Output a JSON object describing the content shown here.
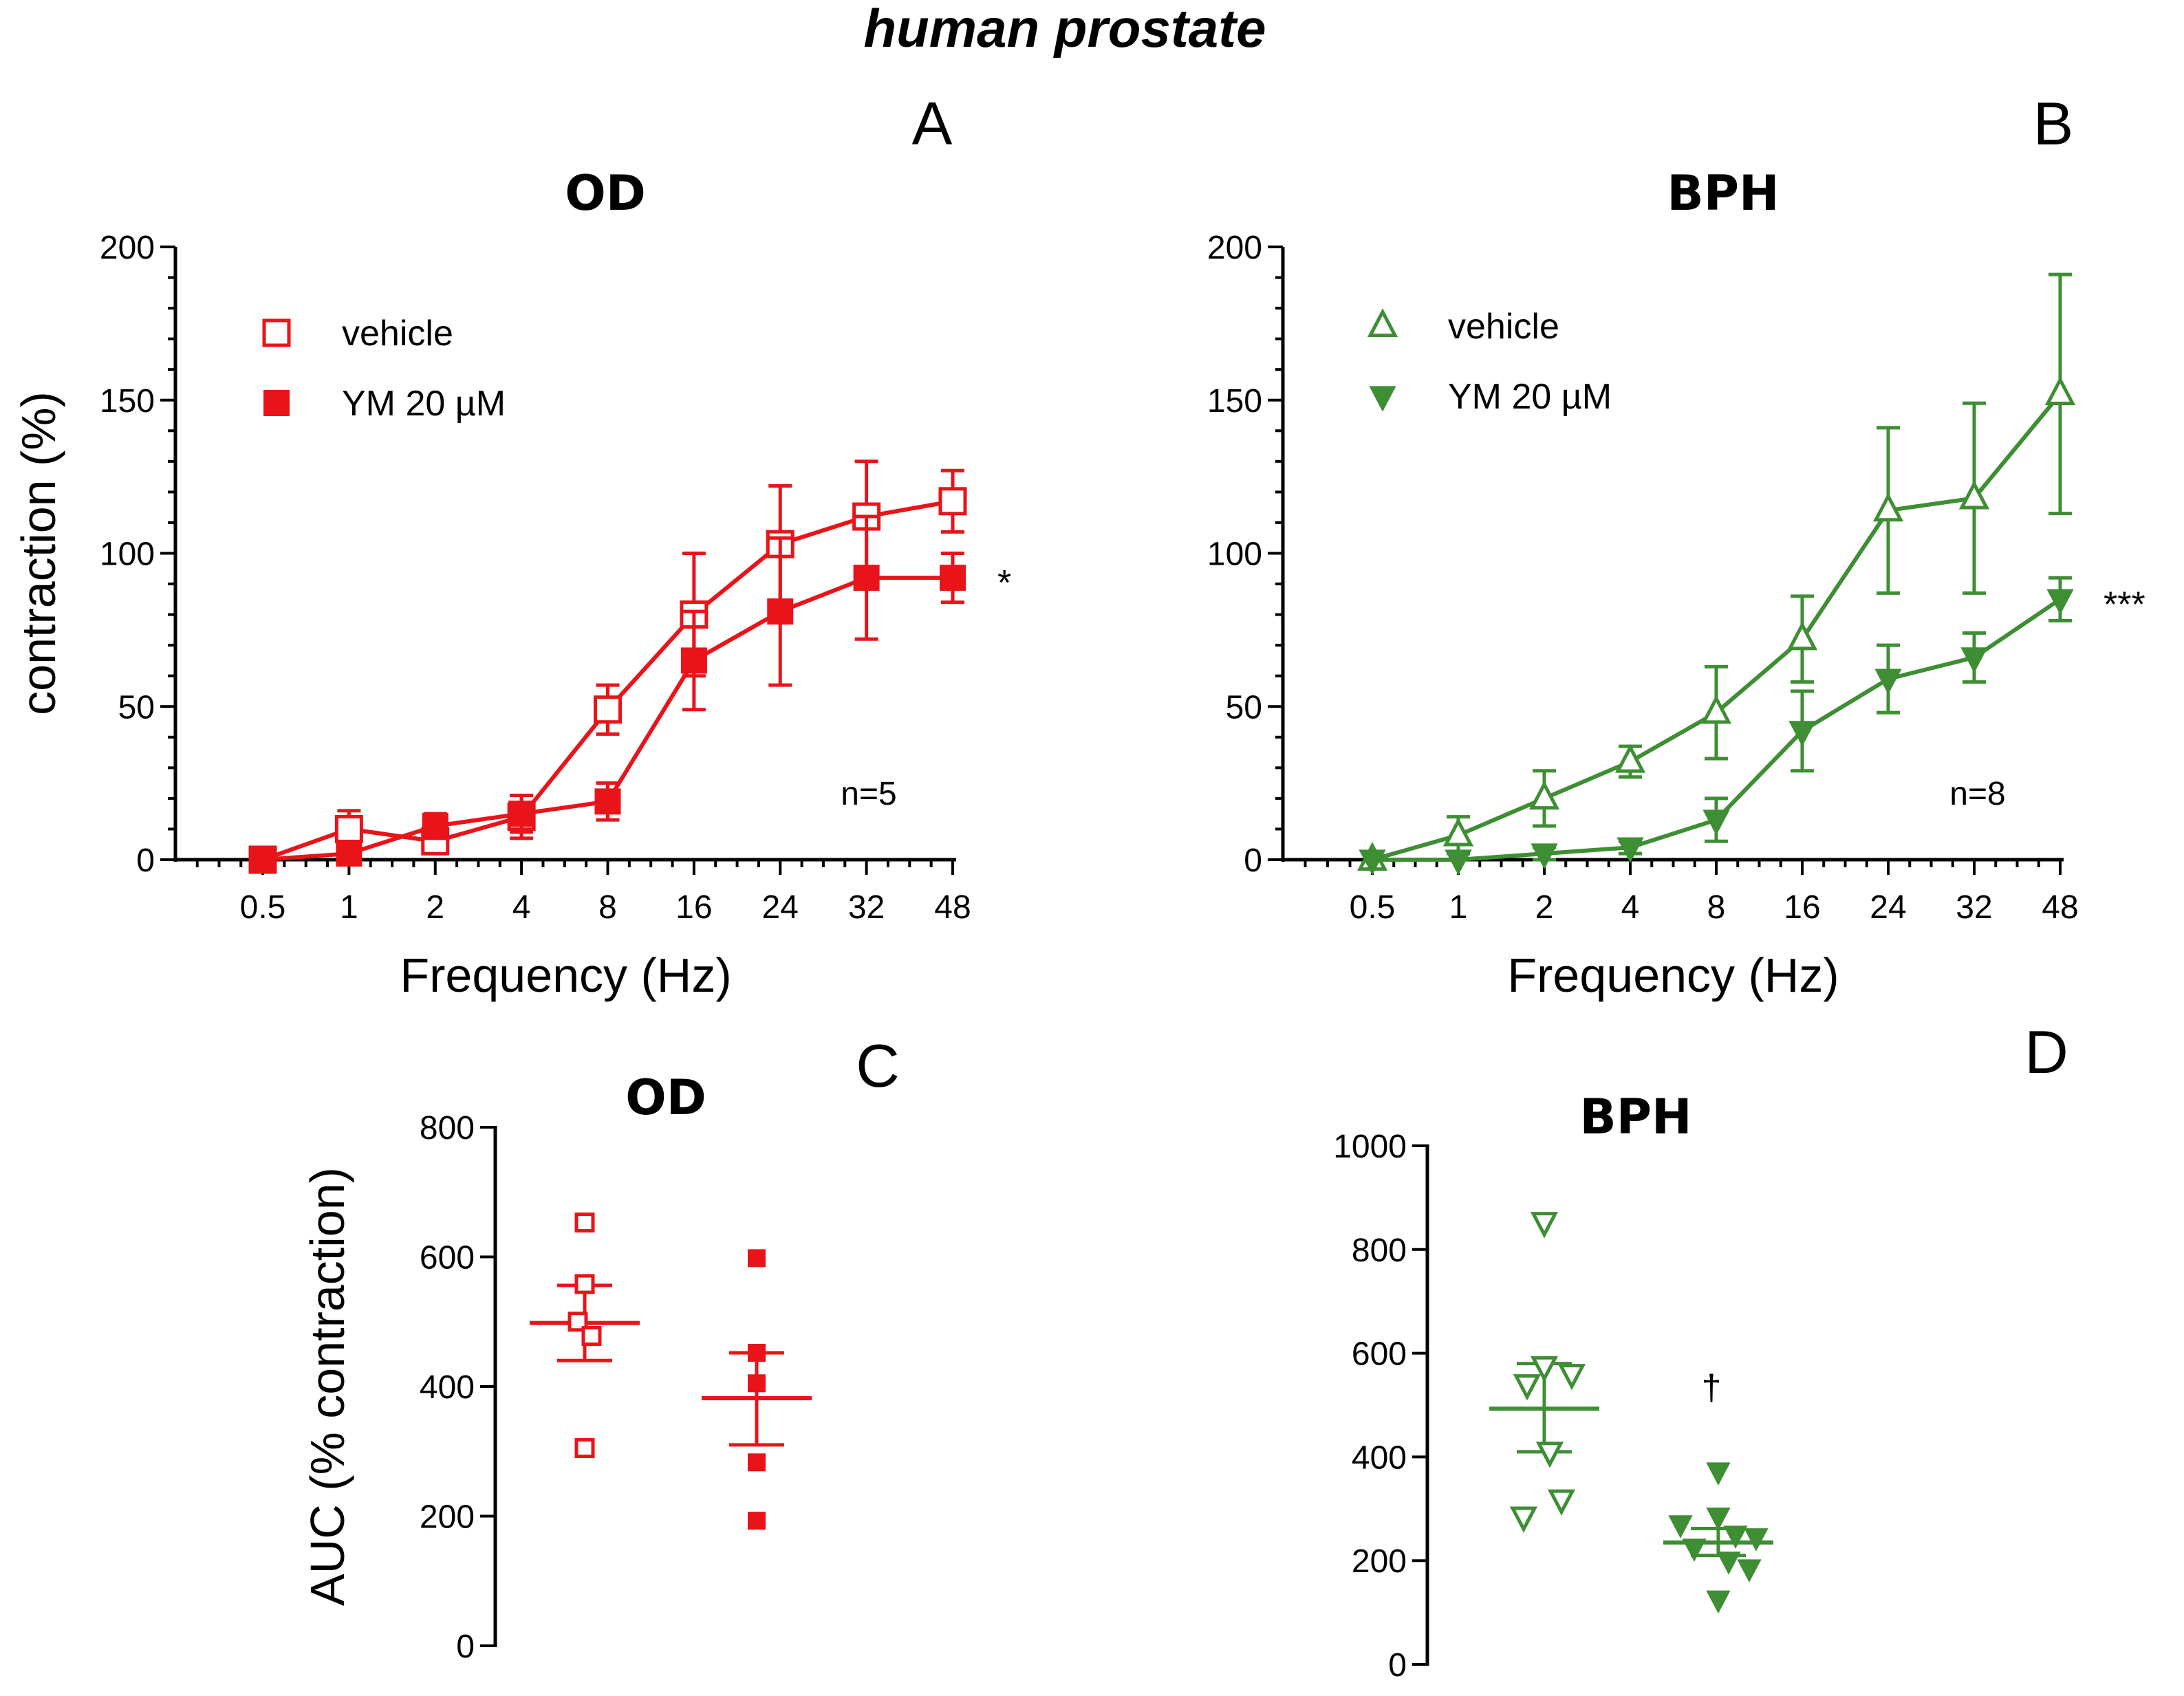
{
  "figure_title": "human prostate",
  "colors": {
    "red": "#e8141a",
    "green": "#3e8e34",
    "black": "#000000"
  },
  "chart_data": [
    {
      "id": "A",
      "panel_letter": "A",
      "type": "line",
      "title": "OD",
      "xlabel": "Frequency (Hz)",
      "ylabel": "contraction (%)",
      "categories": [
        "0.5",
        "1",
        "2",
        "4",
        "8",
        "16",
        "24",
        "32",
        "48"
      ],
      "yticks": [
        "0",
        "50",
        "100",
        "150",
        "200"
      ],
      "ylim": [
        0,
        200
      ],
      "legend": "top-left",
      "annotation": "n=5",
      "significance": "*",
      "series": [
        {
          "name": "vehicle",
          "marker": "square-open",
          "color": "#e8141a",
          "values": [
            0,
            10,
            6,
            14,
            49,
            80,
            103,
            112,
            117
          ],
          "errors": [
            0,
            6,
            4,
            7,
            8,
            20,
            19,
            18,
            10
          ]
        },
        {
          "name": "YM 20 µM",
          "marker": "square-filled",
          "color": "#e8141a",
          "values": [
            0,
            2,
            11,
            15,
            19,
            65,
            81,
            92,
            92
          ],
          "errors": [
            0,
            3,
            4,
            6,
            6,
            16,
            24,
            20,
            8
          ]
        }
      ]
    },
    {
      "id": "B",
      "panel_letter": "B",
      "type": "line",
      "title": "BPH",
      "xlabel": "Frequency (Hz)",
      "ylabel": "",
      "categories": [
        "0.5",
        "1",
        "2",
        "4",
        "8",
        "16",
        "24",
        "32",
        "48"
      ],
      "yticks": [
        "0",
        "50",
        "100",
        "150",
        "200"
      ],
      "ylim": [
        0,
        200
      ],
      "legend": "top-left",
      "annotation": "n=8",
      "significance": "***",
      "series": [
        {
          "name": "vehicle",
          "marker": "triangle-up-open",
          "color": "#3e8e34",
          "values": [
            0,
            8,
            20,
            32,
            48,
            72,
            114,
            118,
            152
          ],
          "errors": [
            0,
            6,
            9,
            5,
            15,
            14,
            27,
            31,
            39
          ]
        },
        {
          "name": "YM 20 µM",
          "marker": "triangle-down-filled",
          "color": "#3e8e34",
          "values": [
            0,
            0,
            2,
            4,
            13,
            42,
            59,
            66,
            85
          ],
          "errors": [
            0,
            0,
            2,
            2,
            7,
            13,
            11,
            8,
            7
          ]
        }
      ]
    },
    {
      "id": "C",
      "panel_letter": "C",
      "type": "scatter",
      "title": "OD",
      "ylabel": "AUC (% contraction)",
      "yticks": [
        "0",
        "200",
        "400",
        "600",
        "800"
      ],
      "ylim": [
        0,
        800
      ],
      "groups": [
        {
          "name": "vehicle",
          "marker": "square-open",
          "color": "#e8141a",
          "points": [
            653,
            558,
            500,
            478,
            305
          ],
          "mean": 498,
          "sem_low": 440,
          "sem_high": 556
        },
        {
          "name": "YM 20 µM",
          "marker": "square-filled",
          "color": "#e8141a",
          "points": [
            598,
            452,
            405,
            283,
            193
          ],
          "mean": 382,
          "sem_low": 310,
          "sem_high": 452
        }
      ]
    },
    {
      "id": "D",
      "panel_letter": "D",
      "type": "scatter",
      "title": "BPH",
      "ylabel": "",
      "yticks": [
        "0",
        "200",
        "400",
        "600",
        "800",
        "1000"
      ],
      "ylim": [
        0,
        1000
      ],
      "significance": "†",
      "groups": [
        {
          "name": "vehicle",
          "marker": "triangle-down-open",
          "color": "#3e8e34",
          "points": [
            853,
            575,
            560,
            540,
            410,
            318,
            285
          ],
          "mean": 493,
          "sem_low": 410,
          "sem_high": 580
        },
        {
          "name": "YM 20 µM",
          "marker": "triangle-down-filled",
          "color": "#3e8e34",
          "points": [
            372,
            285,
            270,
            250,
            245,
            225,
            200,
            185,
            125
          ],
          "mean": 235,
          "sem_low": 210,
          "sem_high": 262
        }
      ]
    }
  ]
}
